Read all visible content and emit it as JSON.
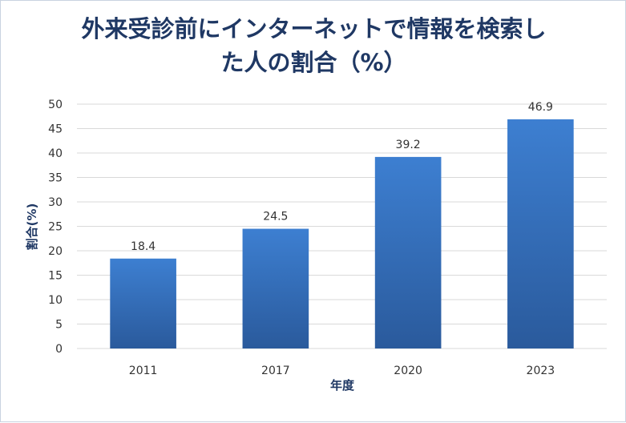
{
  "chart_data": {
    "type": "bar",
    "title_line1": "外来受診前にインターネットで情報を検索し",
    "title_line2": "た人の割合（%）",
    "categories": [
      "2011",
      "2017",
      "2020",
      "2023"
    ],
    "values": [
      18.4,
      24.5,
      39.2,
      46.9
    ],
    "value_labels": [
      "18.4",
      "24.5",
      "39.2",
      "46.9"
    ],
    "xlabel": "年度",
    "ylabel": "割合(%)",
    "ylim": [
      0,
      50
    ],
    "yticks": [
      "0",
      "5",
      "10",
      "15",
      "20",
      "25",
      "30",
      "35",
      "40",
      "45",
      "50"
    ],
    "grid": true,
    "colors": {
      "bar_top": "#3d7fd1",
      "bar_bottom": "#2a5a9c",
      "title": "#1f3864",
      "grid": "#d9d9d9"
    }
  }
}
